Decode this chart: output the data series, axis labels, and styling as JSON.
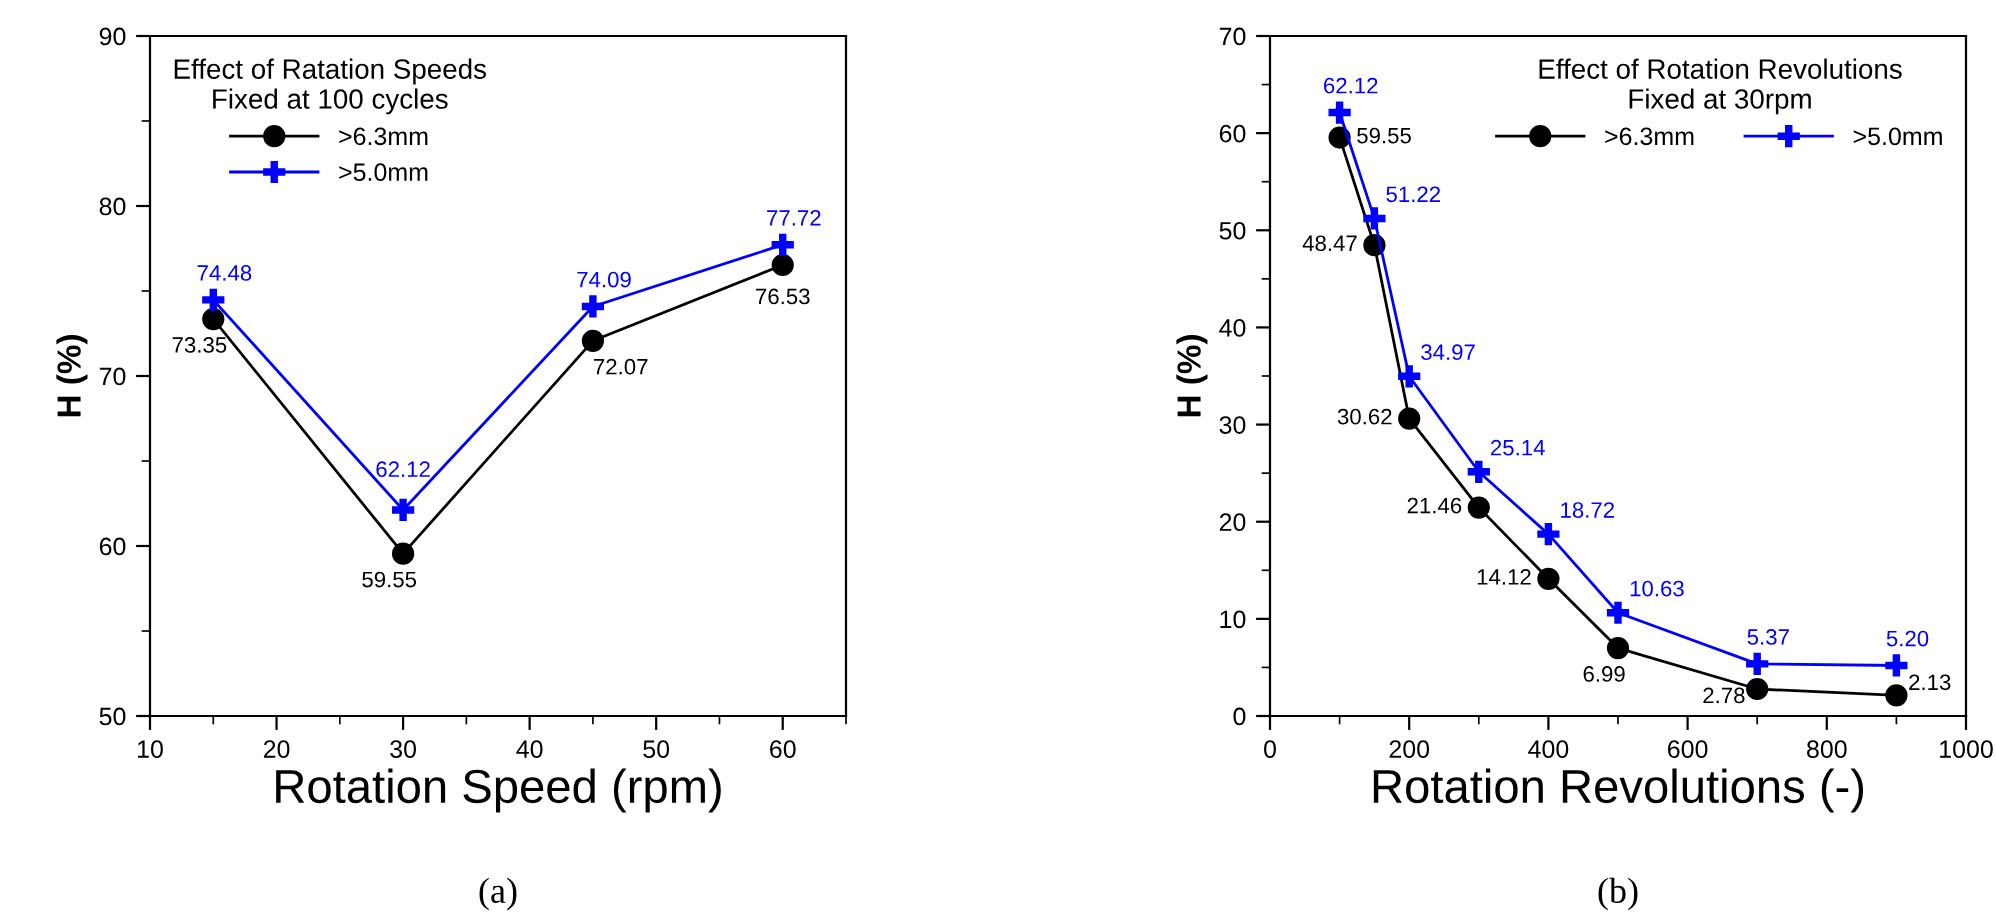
{
  "chart_data": [
    {
      "type": "line",
      "legend_title": "Effect of Ratation Speeds\nFixed at 100 cycles",
      "xlabel": "Rotation Speed (rpm)",
      "ylabel": "H (%)",
      "x": [
        15,
        30,
        45,
        60
      ],
      "series": [
        {
          "name": ">6.3mm",
          "color": "#000000",
          "marker": "circle",
          "values": [
            73.35,
            59.55,
            72.07,
            76.53
          ],
          "value_labels": [
            "73.35",
            "59.55",
            "72.07",
            "76.53"
          ]
        },
        {
          "name": ">5.0mm",
          "color": "#0000ff",
          "marker": "cross",
          "values": [
            74.48,
            62.12,
            74.09,
            77.72
          ],
          "value_labels": [
            "74.48",
            "62.12",
            "74.09",
            "77.72"
          ]
        }
      ],
      "xlim": [
        10,
        65
      ],
      "xticks": [
        10,
        20,
        30,
        40,
        50,
        60
      ],
      "ylim": [
        50,
        90
      ],
      "yticks": [
        50,
        60,
        70,
        80,
        90
      ],
      "grid": false,
      "legend": "top left",
      "annotations": [
        "(a)"
      ]
    },
    {
      "type": "line",
      "legend_title": "Effect of Rotation Revolutions\nFixed at 30rpm",
      "xlabel": "Rotation Revolutions (-)",
      "ylabel": "H (%)",
      "x": [
        100,
        150,
        200,
        300,
        400,
        500,
        700,
        900
      ],
      "series": [
        {
          "name": ">6.3mm",
          "color": "#000000",
          "marker": "circle",
          "values": [
            59.55,
            48.47,
            30.62,
            21.46,
            14.12,
            6.99,
            2.78,
            2.13
          ],
          "value_labels": [
            "59.55",
            "48.47",
            "30.62",
            "21.46",
            "14.12",
            "6.99",
            "2.78",
            "2.13"
          ]
        },
        {
          "name": ">5.0mm",
          "color": "#0000ff",
          "marker": "cross",
          "values": [
            62.12,
            51.22,
            34.97,
            25.14,
            18.72,
            10.63,
            5.37,
            5.2
          ],
          "value_labels": [
            "62.12",
            "51.22",
            "34.97",
            "25.14",
            "18.72",
            "10.63",
            "5.37",
            "5.20"
          ]
        }
      ],
      "xlim": [
        0,
        1000
      ],
      "xticks": [
        0,
        200,
        400,
        600,
        800,
        1000
      ],
      "ylim": [
        0,
        70
      ],
      "yticks": [
        0,
        10,
        20,
        30,
        40,
        50,
        60,
        70
      ],
      "grid": false,
      "legend": "top right",
      "annotations": [
        "(b)"
      ]
    }
  ]
}
